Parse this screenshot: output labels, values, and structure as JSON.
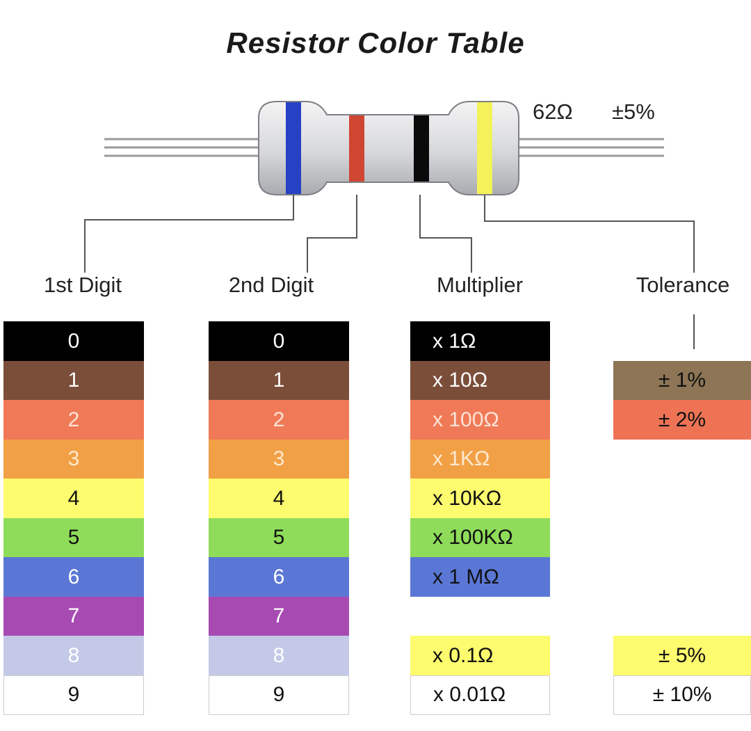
{
  "title": "Resistor Color Table",
  "example": {
    "resistance": "62Ω",
    "tolerance": "±5%"
  },
  "columns": {
    "first_digit": "1st Digit",
    "second_digit": "2nd Digit",
    "multiplier": "Multiplier",
    "tolerance": "Tolerance"
  },
  "colors": {
    "black": "#000000",
    "brown": "#7b4e3a",
    "red": "#f07a57",
    "orange": "#f2a046",
    "yellow": "#fdfb6e",
    "green": "#8fdc5a",
    "blue": "#5b77d6",
    "violet": "#a74bb3",
    "gray": "#c3c9e6",
    "white": "#ffffff",
    "tolerance_brown": "#8d7556",
    "tolerance_red": "#ee7355"
  },
  "digits": [
    {
      "label": "0",
      "color": "black",
      "text_color": "#ffffff"
    },
    {
      "label": "1",
      "color": "brown",
      "text_color": "#ffffff"
    },
    {
      "label": "2",
      "color": "red",
      "text_color": "#fde3d8"
    },
    {
      "label": "3",
      "color": "orange",
      "text_color": "#fde9cf"
    },
    {
      "label": "4",
      "color": "yellow",
      "text_color": "#111111"
    },
    {
      "label": "5",
      "color": "green",
      "text_color": "#111111"
    },
    {
      "label": "6",
      "color": "blue",
      "text_color": "#ffffff"
    },
    {
      "label": "7",
      "color": "violet",
      "text_color": "#ffffff"
    },
    {
      "label": "8",
      "color": "gray",
      "text_color": "#ffffff"
    },
    {
      "label": "9",
      "color": "white",
      "text_color": "#111111"
    }
  ],
  "multipliers": [
    {
      "label": "x 1Ω",
      "color": "black",
      "text_color": "#ffffff",
      "row": 0
    },
    {
      "label": "x 10Ω",
      "color": "brown",
      "text_color": "#ffffff",
      "row": 1
    },
    {
      "label": "x 100Ω",
      "color": "red",
      "text_color": "#fde3d8",
      "row": 2
    },
    {
      "label": "x 1KΩ",
      "color": "orange",
      "text_color": "#fde9cf",
      "row": 3
    },
    {
      "label": "x 10KΩ",
      "color": "yellow",
      "text_color": "#111111",
      "row": 4
    },
    {
      "label": "x 100KΩ",
      "color": "green",
      "text_color": "#111111",
      "row": 5
    },
    {
      "label": "x 1 MΩ",
      "color": "blue",
      "text_color": "#111111",
      "row": 6
    },
    {
      "label": "x 0.1Ω",
      "color": "yellow",
      "text_color": "#111111",
      "row": 8
    },
    {
      "label": "x 0.01Ω",
      "color": "white",
      "text_color": "#111111",
      "row": 9
    }
  ],
  "tolerances": [
    {
      "label": "± 1%",
      "color": "tolerance_brown",
      "text_color": "#111111",
      "row": 1
    },
    {
      "label": "± 2%",
      "color": "tolerance_red",
      "text_color": "#111111",
      "row": 2
    },
    {
      "label": "± 5%",
      "color": "yellow",
      "text_color": "#111111",
      "row": 8
    },
    {
      "label": "± 10%",
      "color": "white",
      "text_color": "#111111",
      "row": 9
    }
  ]
}
